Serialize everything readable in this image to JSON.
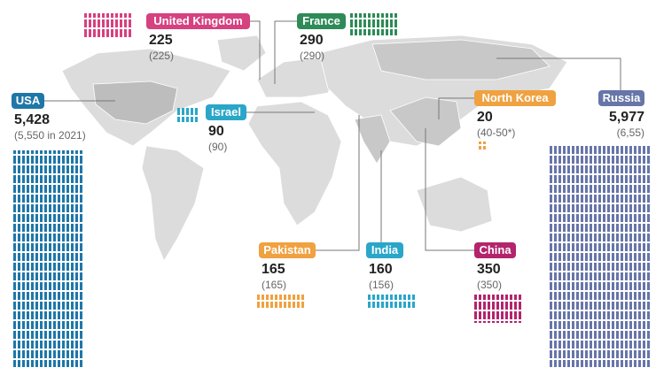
{
  "countries": [
    {
      "name": "United Kingdom",
      "count": "225",
      "previous": "(225)"
    },
    {
      "name": "France",
      "count": "290",
      "previous": "(290)"
    },
    {
      "name": "USA",
      "count": "5,428",
      "previous": "(5,550 in 2021)"
    },
    {
      "name": "Israel",
      "count": "90",
      "previous": "(90)"
    },
    {
      "name": "North Korea",
      "count": "20",
      "previous": "(40-50*)"
    },
    {
      "name": "Russia",
      "count": "5,977",
      "previous": "(6,55)"
    },
    {
      "name": "Pakistan",
      "count": "165",
      "previous": "(165)"
    },
    {
      "name": "India",
      "count": "160",
      "previous": "(156)"
    },
    {
      "name": "China",
      "count": "350",
      "previous": "(350)"
    }
  ]
}
